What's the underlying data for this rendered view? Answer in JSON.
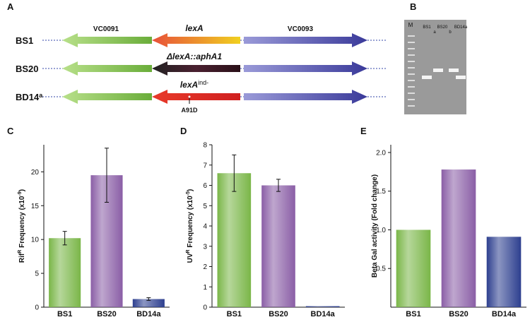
{
  "panel_a": {
    "label": "A",
    "rows": [
      {
        "name": "BS1",
        "sup": null,
        "middle": "lexA",
        "middle_sup": null,
        "note": null
      },
      {
        "name": "BS20",
        "sup": null,
        "middle": "ΔlexA::aphA1",
        "middle_sup": null,
        "note": null
      },
      {
        "name": "BD14",
        "sup": "a",
        "middle": "lexA",
        "middle_sup": "ind-",
        "note": "A91D"
      }
    ],
    "left_gene": "VC0091",
    "right_gene": "VC0093"
  },
  "panel_b": {
    "label": "B",
    "lanes": [
      "M",
      "BS1",
      "BS20",
      "BD14a"
    ],
    "sublanes": [
      "a",
      "b"
    ]
  },
  "chart_data": [
    {
      "type": "bar",
      "panel": "C",
      "ylabel_parts": [
        "Rif",
        "R",
        " Frequency (x10",
        "-9",
        ")"
      ],
      "categories": [
        "BS1",
        "BS20",
        "BD14a"
      ],
      "values": [
        10.2,
        19.5,
        1.2
      ],
      "errors": [
        1.0,
        4.0,
        0.2
      ],
      "colors": [
        "#7ab648",
        "#8a5ea6",
        "#2d3f8f"
      ],
      "ylim": [
        0,
        24
      ],
      "yticks": [
        0,
        5,
        10,
        15,
        20
      ]
    },
    {
      "type": "bar",
      "panel": "D",
      "ylabel_parts": [
        "UV",
        "R",
        " Frequency (x10",
        "-5",
        ")"
      ],
      "categories": [
        "BS1",
        "BS20",
        "BD14a"
      ],
      "values": [
        6.6,
        6.0,
        0.05
      ],
      "errors": [
        0.9,
        0.3,
        null
      ],
      "colors": [
        "#7ab648",
        "#8a5ea6",
        "#2d3f8f"
      ],
      "ylim": [
        0,
        8
      ],
      "yticks": [
        0,
        1,
        2,
        3,
        4,
        5,
        6,
        7,
        8
      ]
    },
    {
      "type": "bar",
      "panel": "E",
      "ylabel_parts": [
        "Beta Gal activity (Fold change)"
      ],
      "categories": [
        "BS1",
        "BS20",
        "BD14a"
      ],
      "values": [
        1.0,
        1.78,
        0.91
      ],
      "errors": [
        null,
        null,
        null
      ],
      "colors": [
        "#7ab648",
        "#8a5ea6",
        "#2d3f8f"
      ],
      "ylim": [
        0,
        2.1
      ],
      "yticks": [
        {
          "value": 0.5,
          "label": "0.5"
        },
        {
          "value": 1.0,
          "label": "1.0"
        },
        {
          "value": 1.5,
          "label": "1.5"
        },
        {
          "value": 2.0,
          "label": "2.0"
        }
      ]
    }
  ]
}
